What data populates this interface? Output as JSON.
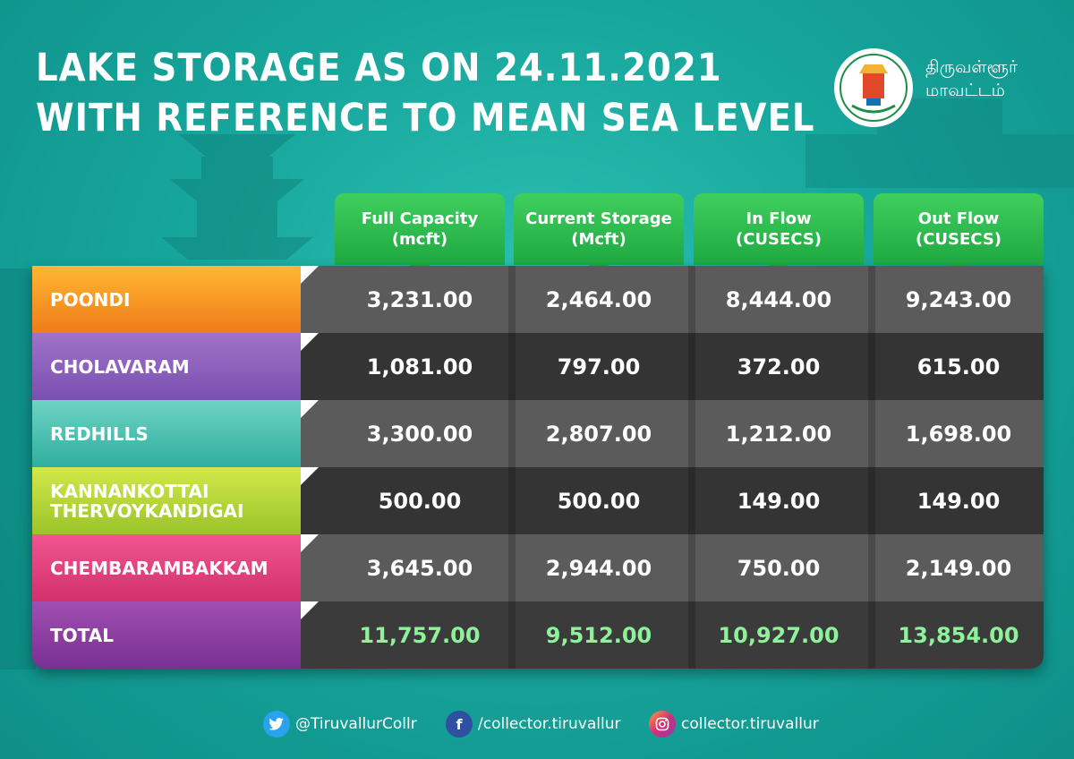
{
  "title": {
    "line1": "LAKE STORAGE AS ON 24.11.2021",
    "line2": "WITH REFERENCE TO MEAN SEA LEVEL"
  },
  "district": {
    "line1": "திருவள்ளூர்",
    "line2": "மாவட்டம்"
  },
  "headers": [
    {
      "line1": "Full Capacity",
      "line2": "(mcft)"
    },
    {
      "line1": "Current Storage",
      "line2": "(Mcft)"
    },
    {
      "line1": "In Flow",
      "line2": "(CUSECS)"
    },
    {
      "line1": "Out Flow",
      "line2": "(CUSECS)"
    }
  ],
  "rows": [
    {
      "name": "POONDI",
      "name2": "",
      "color_top": "#ffb732",
      "color_bottom": "#f07b1a",
      "values": [
        "3,231.00",
        "2,464.00",
        "8,444.00",
        "9,243.00"
      ]
    },
    {
      "name": "CHOLAVARAM",
      "name2": "",
      "color_top": "#a073c8",
      "color_bottom": "#7a4fb0",
      "values": [
        "1,081.00",
        "797.00",
        "372.00",
        "615.00"
      ]
    },
    {
      "name": "REDHILLS",
      "name2": "",
      "color_top": "#6fd3c4",
      "color_bottom": "#2fae9f",
      "values": [
        "3,300.00",
        "2,807.00",
        "1,212.00",
        "1,698.00"
      ]
    },
    {
      "name": "KANNANKOTTAI",
      "name2": "THERVOYKANDIGAI",
      "color_top": "#d3e84a",
      "color_bottom": "#9ac42a",
      "values": [
        "500.00",
        "500.00",
        "149.00",
        "149.00"
      ]
    },
    {
      "name": "CHEMBARAMBAKKAM",
      "name2": "",
      "color_top": "#f0568f",
      "color_bottom": "#d2306c",
      "values": [
        "3,645.00",
        "2,944.00",
        "750.00",
        "2,149.00"
      ]
    }
  ],
  "total": {
    "name": "TOTAL",
    "color_top": "#a04fb2",
    "color_bottom": "#7a2f92",
    "values": [
      "11,757.00",
      "9,512.00",
      "10,927.00",
      "13,854.00"
    ]
  },
  "social": {
    "twitter": "@TiruvallurCollr",
    "facebook": "/collector.tiruvallur",
    "instagram": "collector.tiruvallur"
  }
}
